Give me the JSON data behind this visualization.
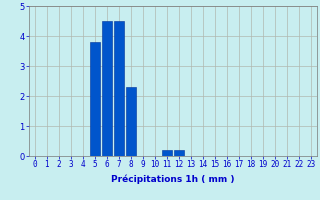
{
  "xlabel": "Précipitations 1h ( mm )",
  "ylabel": "",
  "hours": [
    0,
    1,
    2,
    3,
    4,
    5,
    6,
    7,
    8,
    9,
    10,
    11,
    12,
    13,
    14,
    15,
    16,
    17,
    18,
    19,
    20,
    21,
    22,
    23
  ],
  "values": [
    0,
    0,
    0,
    0,
    0,
    3.8,
    4.5,
    4.5,
    2.3,
    0,
    0,
    0.2,
    0.2,
    0,
    0,
    0,
    0,
    0,
    0,
    0,
    0,
    0,
    0,
    0
  ],
  "bar_color": "#0055cc",
  "bar_edge_color": "#003399",
  "background_color": "#c8eef0",
  "grid_color": "#b0b8b0",
  "ylim": [
    0,
    5
  ],
  "xlim": [
    -0.5,
    23.5
  ],
  "yticks": [
    0,
    1,
    2,
    3,
    4,
    5
  ],
  "xtick_labels": [
    "0",
    "1",
    "2",
    "3",
    "4",
    "5",
    "6",
    "7",
    "8",
    "9",
    "10",
    "11",
    "12",
    "13",
    "14",
    "15",
    "16",
    "17",
    "18",
    "19",
    "20",
    "21",
    "22",
    "23"
  ],
  "xlabel_fontsize": 6.5,
  "tick_fontsize": 5.5,
  "bar_width": 0.85,
  "text_color": "#0000cc"
}
